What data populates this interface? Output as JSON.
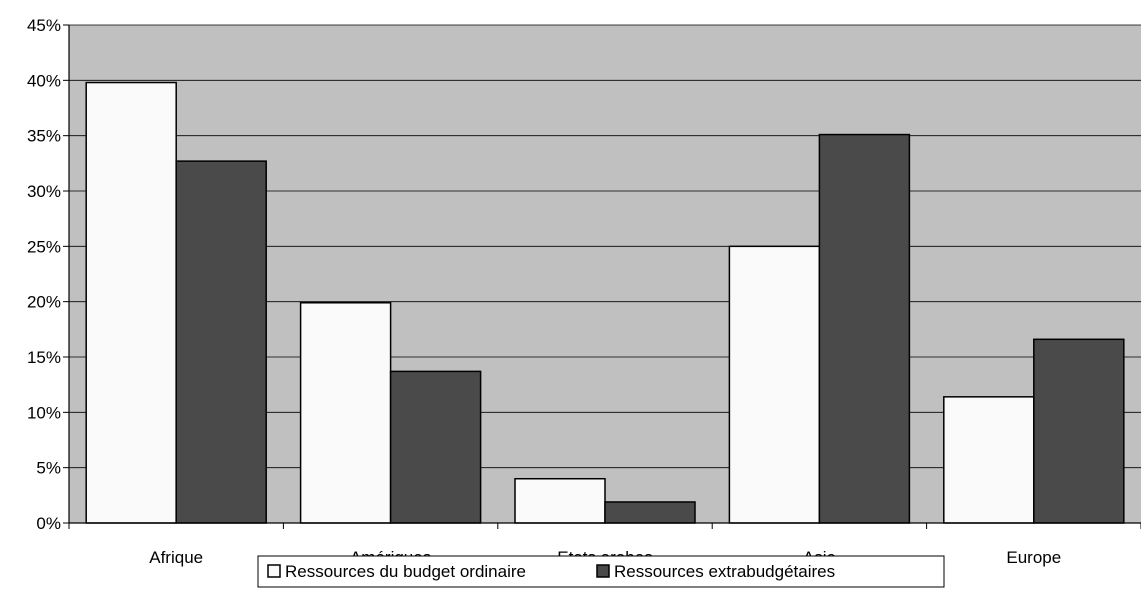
{
  "chart_data": {
    "type": "bar",
    "categories": [
      "Afrique",
      "Amériques",
      "Etats arabes",
      "Asie",
      "Europe"
    ],
    "series": [
      {
        "name": "Ressources du budget ordinaire",
        "values": [
          39.8,
          19.9,
          4.0,
          25.0,
          11.4
        ],
        "color": "#fafafa"
      },
      {
        "name": "Ressources extrabudgétaires",
        "values": [
          32.7,
          13.7,
          1.9,
          35.1,
          16.6
        ],
        "color": "#4a4a4a"
      }
    ],
    "ylim": [
      0,
      45
    ],
    "yticks": [
      "0%",
      "5%",
      "10%",
      "15%",
      "20%",
      "25%",
      "30%",
      "35%",
      "40%",
      "45%"
    ],
    "grid": true,
    "plot_background": "#c0c0c0",
    "legend": "bottom-center"
  }
}
